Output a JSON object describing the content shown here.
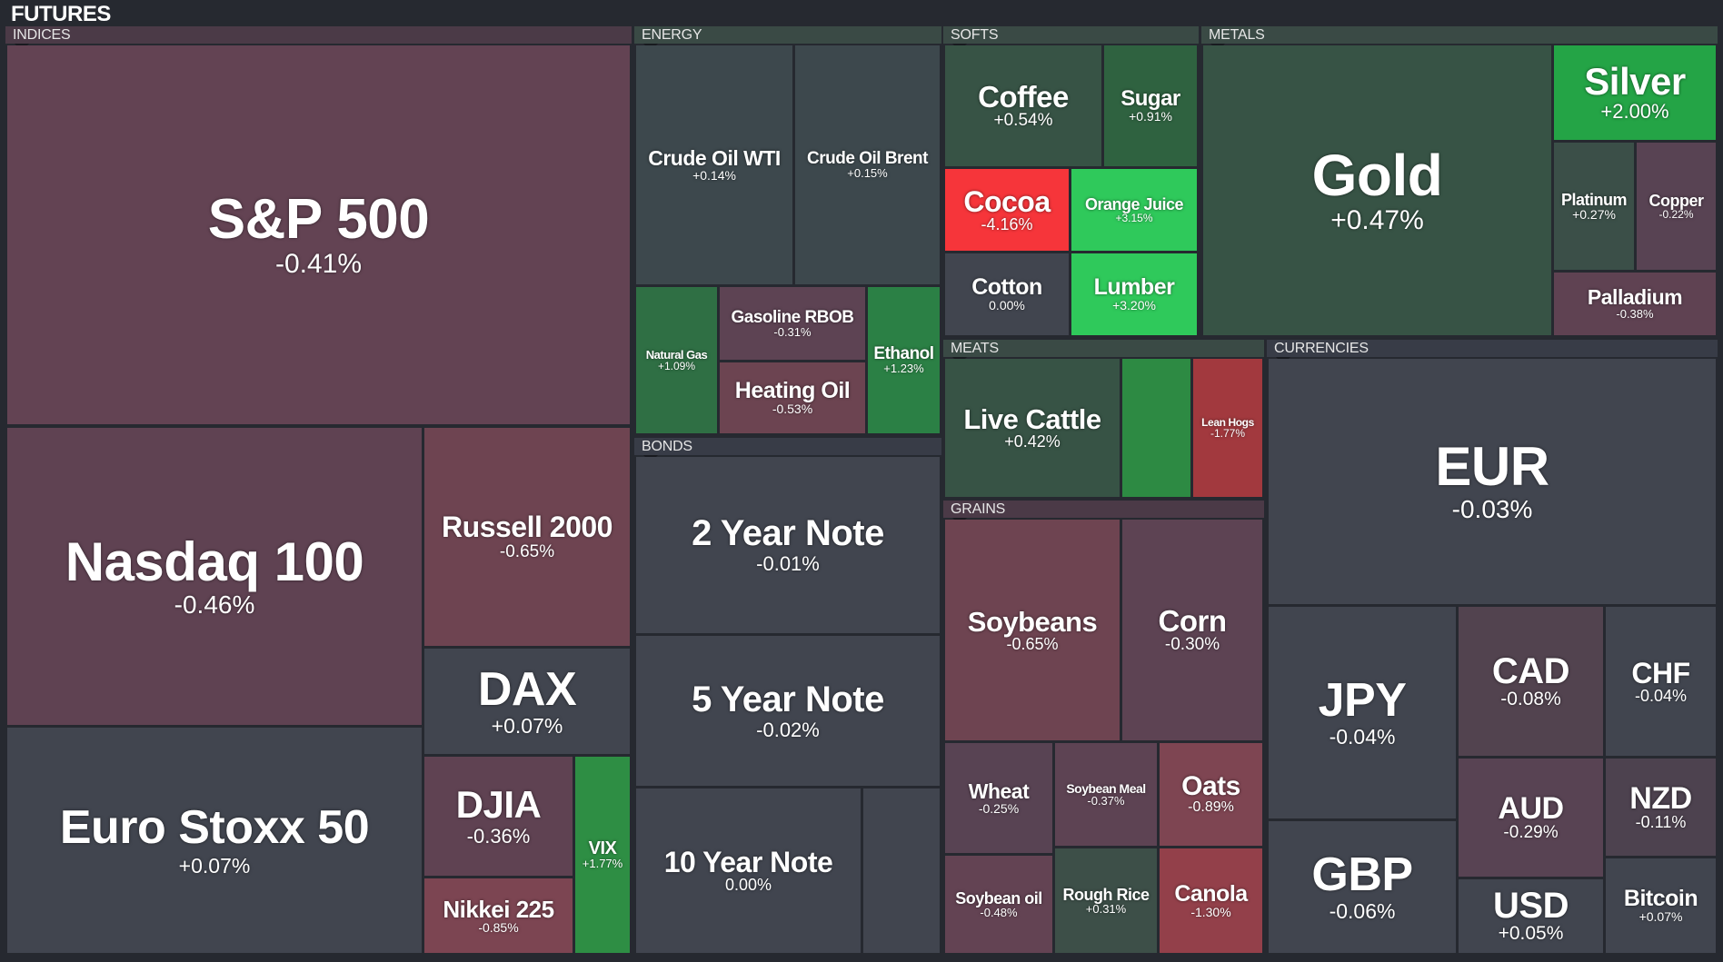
{
  "header": {
    "title": "FUTURES"
  },
  "colors": {
    "background": "#262930",
    "neutral": "#414553",
    "neg_weak": "#5a4352",
    "neg_mid": "#714551",
    "neg_strong": "#a2393e",
    "neg_extreme": "#f6353a",
    "pos_weak": "#3b5349",
    "pos_mid": "#2d8b48",
    "pos_strong": "#1fa848",
    "pos_extreme": "#2fc95b"
  },
  "groups": {
    "indices": {
      "label": "INDICES"
    },
    "energy": {
      "label": "ENERGY"
    },
    "bonds": {
      "label": "BONDS"
    },
    "softs": {
      "label": "SOFTS"
    },
    "meats": {
      "label": "MEATS"
    },
    "grains": {
      "label": "GRAINS"
    },
    "metals": {
      "label": "METALS"
    },
    "currencies": {
      "label": "CURRENCIES"
    }
  },
  "tiles": {
    "sp500": {
      "name": "S&P 500",
      "change": "-0.41%"
    },
    "nasdaq100": {
      "name": "Nasdaq 100",
      "change": "-0.46%"
    },
    "russell2000": {
      "name": "Russell 2000",
      "change": "-0.65%"
    },
    "dax": {
      "name": "DAX",
      "change": "+0.07%"
    },
    "eurostoxx50": {
      "name": "Euro Stoxx 50",
      "change": "+0.07%"
    },
    "djia": {
      "name": "DJIA",
      "change": "-0.36%"
    },
    "vix": {
      "name": "VIX",
      "change": "+1.77%"
    },
    "nikkei225": {
      "name": "Nikkei 225",
      "change": "-0.85%"
    },
    "crude_wti": {
      "name": "Crude Oil WTI",
      "change": "+0.14%"
    },
    "crude_brent": {
      "name": "Crude Oil Brent",
      "change": "+0.15%"
    },
    "natural_gas": {
      "name": "Natural Gas",
      "change": "+1.09%"
    },
    "gasoline_rbob": {
      "name": "Gasoline RBOB",
      "change": "-0.31%"
    },
    "heating_oil": {
      "name": "Heating Oil",
      "change": "-0.53%"
    },
    "ethanol": {
      "name": "Ethanol",
      "change": "+1.23%"
    },
    "note2y": {
      "name": "2 Year Note",
      "change": "-0.01%"
    },
    "note5y": {
      "name": "5 Year Note",
      "change": "-0.02%"
    },
    "note10y": {
      "name": "10 Year Note",
      "change": "0.00%"
    },
    "coffee": {
      "name": "Coffee",
      "change": "+0.54%"
    },
    "sugar": {
      "name": "Sugar",
      "change": "+0.91%"
    },
    "cocoa": {
      "name": "Cocoa",
      "change": "-4.16%"
    },
    "orange_juice": {
      "name": "Orange Juice",
      "change": "+3.15%"
    },
    "cotton": {
      "name": "Cotton",
      "change": "0.00%"
    },
    "lumber": {
      "name": "Lumber",
      "change": "+3.20%"
    },
    "live_cattle": {
      "name": "Live Cattle",
      "change": "+0.42%"
    },
    "lean_hogs": {
      "name": "Lean Hogs",
      "change": "-1.77%"
    },
    "soybeans": {
      "name": "Soybeans",
      "change": "-0.65%"
    },
    "corn": {
      "name": "Corn",
      "change": "-0.30%"
    },
    "wheat": {
      "name": "Wheat",
      "change": "-0.25%"
    },
    "soybean_meal": {
      "name": "Soybean Meal",
      "change": "-0.37%"
    },
    "oats": {
      "name": "Oats",
      "change": "-0.89%"
    },
    "soybean_oil": {
      "name": "Soybean oil",
      "change": "-0.48%"
    },
    "rough_rice": {
      "name": "Rough Rice",
      "change": "+0.31%"
    },
    "canola": {
      "name": "Canola",
      "change": "-1.30%"
    },
    "gold": {
      "name": "Gold",
      "change": "+0.47%"
    },
    "silver": {
      "name": "Silver",
      "change": "+2.00%"
    },
    "platinum": {
      "name": "Platinum",
      "change": "+0.27%"
    },
    "copper": {
      "name": "Copper",
      "change": "-0.22%"
    },
    "palladium": {
      "name": "Palladium",
      "change": "-0.38%"
    },
    "eur": {
      "name": "EUR",
      "change": "-0.03%"
    },
    "jpy": {
      "name": "JPY",
      "change": "-0.04%"
    },
    "cad": {
      "name": "CAD",
      "change": "-0.08%"
    },
    "chf": {
      "name": "CHF",
      "change": "-0.04%"
    },
    "aud": {
      "name": "AUD",
      "change": "-0.29%"
    },
    "nzd": {
      "name": "NZD",
      "change": "-0.11%"
    },
    "gbp": {
      "name": "GBP",
      "change": "-0.06%"
    },
    "usd": {
      "name": "USD",
      "change": "+0.05%"
    },
    "bitcoin": {
      "name": "Bitcoin",
      "change": "+0.07%"
    }
  }
}
